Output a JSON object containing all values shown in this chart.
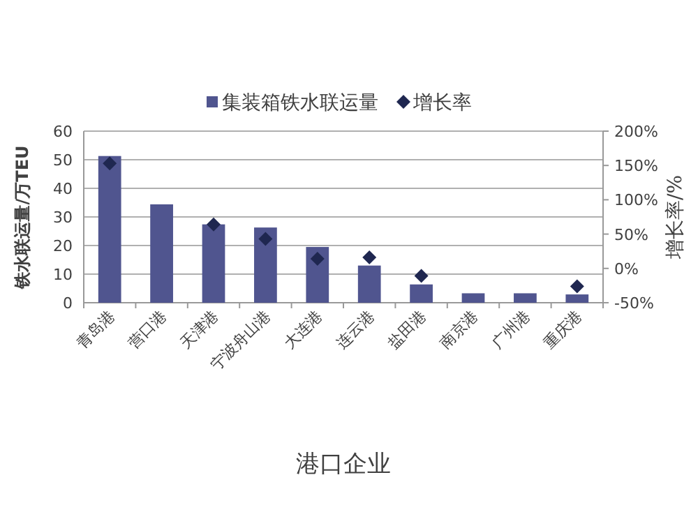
{
  "chart_data": {
    "type": "bar",
    "categories": [
      "青岛港",
      "营口港",
      "天津港",
      "宁波舟山港",
      "大连港",
      "连云港",
      "盐田港",
      "南京港",
      "广州港",
      "重庆港"
    ],
    "series": [
      {
        "name": "集装箱铁水联运量",
        "color": "#50558f",
        "values": [
          51.3,
          34.4,
          27.4,
          26.3,
          19.5,
          13,
          6.4,
          3.3,
          3.3,
          2.9
        ]
      },
      {
        "name": "增长率",
        "type": "scatter",
        "axis": "y2",
        "color": "#1f2750",
        "values": [
          153,
          null,
          64,
          43,
          14,
          16,
          -11,
          null,
          null,
          -26
        ]
      }
    ],
    "ylim": [
      0,
      60
    ],
    "yticks": [
      0,
      10,
      20,
      30,
      40,
      50,
      60
    ],
    "y2lim": [
      -50,
      200
    ],
    "y2ticks": [
      {
        "value": -50,
        "label": "-50%"
      },
      {
        "value": 0,
        "label": "0%"
      },
      {
        "value": 50,
        "label": "50%"
      },
      {
        "value": 100,
        "label": "100%"
      },
      {
        "value": 150,
        "label": "150%"
      },
      {
        "value": 200,
        "label": "200%"
      }
    ],
    "ylabel": "铁水联运量/万TEU",
    "y2label": "增长率/%",
    "xlabel": "港口企业",
    "grid": "y",
    "legend": "top",
    "marker": "diamond"
  }
}
